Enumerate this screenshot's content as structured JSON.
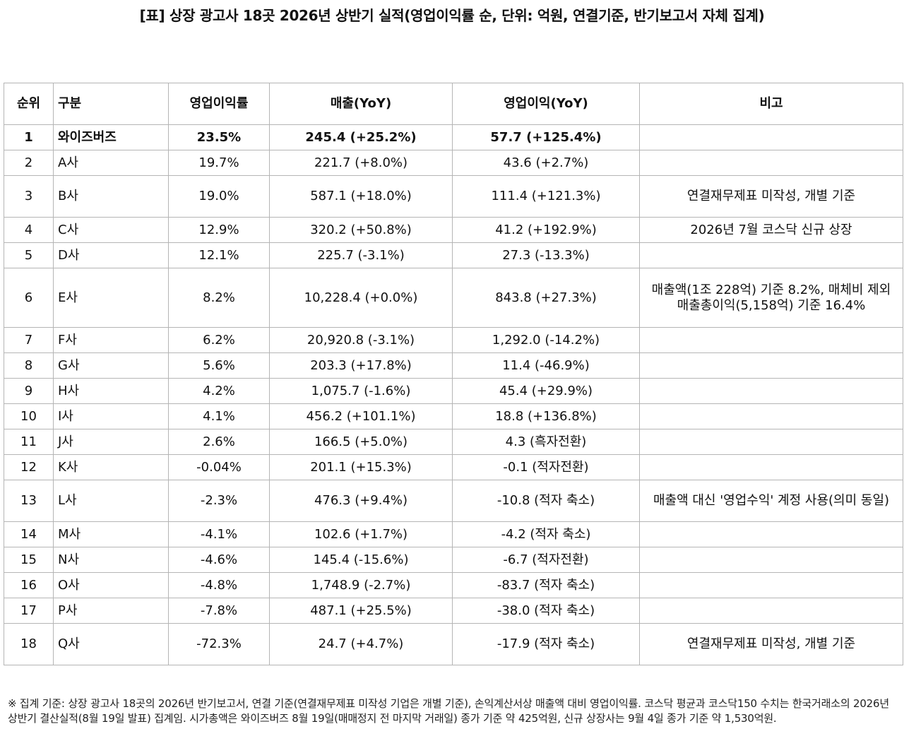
{
  "title": "[표] 상장 광고사 18곳 2026년 상반기 실적(영업이익률 순, 단위: 억원, 연결기준, 반기보고서 자체 집계)",
  "table": {
    "headers": [
      "순위",
      "구분",
      "영업이익률",
      "매출(YoY)",
      "영업이익(YoY)",
      "비고"
    ],
    "rows": [
      {
        "rank": "1",
        "name": "와이즈버즈",
        "margin": "23.5%",
        "sales": "245.4 (+25.2%)",
        "profit": "57.7 (+125.4%)",
        "note": ""
      },
      {
        "rank": "2",
        "name": "A사",
        "margin": "19.7%",
        "sales": "221.7 (+8.0%)",
        "profit": "43.6 (+2.7%)",
        "note": ""
      },
      {
        "rank": "3",
        "name": "B사",
        "margin": "19.0%",
        "sales": "587.1 (+18.0%)",
        "profit": "111.4 (+121.3%)",
        "note": "연결재무제표 미작성, 개별 기준"
      },
      {
        "rank": "4",
        "name": "C사",
        "margin": "12.9%",
        "sales": "320.2 (+50.8%)",
        "profit": "41.2 (+192.9%)",
        "note": "2026년 7월 코스닥 신규 상장"
      },
      {
        "rank": "5",
        "name": "D사",
        "margin": "12.1%",
        "sales": "225.7 (-3.1%)",
        "profit": "27.3 (-13.3%)",
        "note": ""
      },
      {
        "rank": "6",
        "name": "E사",
        "margin": "8.2%",
        "sales": "10,228.4 (+0.0%)",
        "profit": "843.8 (+27.3%)",
        "note": "매출액(1조 228억) 기준 8.2%, 매체비 제외 매출총이익(5,158억) 기준 16.4%"
      },
      {
        "rank": "7",
        "name": "F사",
        "margin": "6.2%",
        "sales": "20,920.8 (-3.1%)",
        "profit": "1,292.0 (-14.2%)",
        "note": ""
      },
      {
        "rank": "8",
        "name": "G사",
        "margin": "5.6%",
        "sales": "203.3 (+17.8%)",
        "profit": "11.4 (-46.9%)",
        "note": ""
      },
      {
        "rank": "9",
        "name": "H사",
        "margin": "4.2%",
        "sales": "1,075.7 (-1.6%)",
        "profit": "45.4 (+29.9%)",
        "note": ""
      },
      {
        "rank": "10",
        "name": "I사",
        "margin": "4.1%",
        "sales": "456.2 (+101.1%)",
        "profit": "18.8 (+136.8%)",
        "note": ""
      },
      {
        "rank": "11",
        "name": "J사",
        "margin": "2.6%",
        "sales": "166.5 (+5.0%)",
        "profit": "4.3 (흑자전환)",
        "note": ""
      },
      {
        "rank": "12",
        "name": "K사",
        "margin": "-0.04%",
        "sales": "201.1 (+15.3%)",
        "profit": "-0.1 (적자전환)",
        "note": ""
      },
      {
        "rank": "13",
        "name": "L사",
        "margin": "-2.3%",
        "sales": "476.3 (+9.4%)",
        "profit": "-10.8 (적자 축소)",
        "note": "매출액 대신 '영업수익' 계정 사용(의미 동일)"
      },
      {
        "rank": "14",
        "name": "M사",
        "margin": "-4.1%",
        "sales": "102.6 (+1.7%)",
        "profit": "-4.2 (적자 축소)",
        "note": ""
      },
      {
        "rank": "15",
        "name": "N사",
        "margin": "-4.6%",
        "sales": "145.4 (-15.6%)",
        "profit": "-6.7 (적자전환)",
        "note": ""
      },
      {
        "rank": "16",
        "name": "O사",
        "margin": "-4.8%",
        "sales": "1,748.9 (-2.7%)",
        "profit": "-83.7 (적자 축소)",
        "note": ""
      },
      {
        "rank": "17",
        "name": "P사",
        "margin": "-7.8%",
        "sales": "487.1 (+25.5%)",
        "profit": "-38.0 (적자 축소)",
        "note": ""
      },
      {
        "rank": "18",
        "name": "Q사",
        "margin": "-72.3%",
        "sales": "24.7 (+4.7%)",
        "profit": "-17.9 (적자 축소)",
        "note": "연결재무제표 미작성, 개별 기준"
      }
    ]
  },
  "footnote": "※ 집계 기준: 상장 광고사 18곳의 2026년 반기보고서, 연결 기준(연결재무제표 미작성 기업은 개별 기준), 손익계산서상 매출액 대비 영업이익률. 코스닥 평균과 코스닥150 수치는 한국거래소의 2026년 상반기 결산실적(8월 19일 발표) 집계임. 시가총액은 와이즈버즈 8월 19일(매매정지 전 마지막 거래일) 종가 기준 약 425억원, 신규 상장사는 9월 4일 종가 기준 약 1,530억원."
}
